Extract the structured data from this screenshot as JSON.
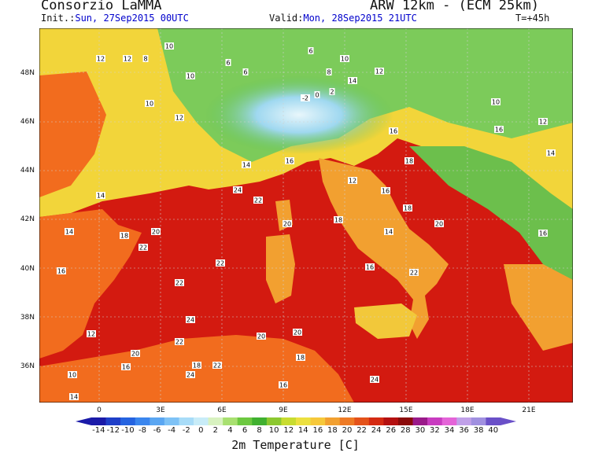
{
  "header": {
    "org": "Consorzio LaMMA",
    "model": "ARW 12km - (ECM 25km)",
    "init_label": "Init.:",
    "init_value": "Sun, 27Sep2015 00UTC",
    "valid_label": "Valid:",
    "valid_value": "Mon, 28Sep2015 21UTC",
    "lead": "T=+45h"
  },
  "map": {
    "lon_labels": [
      "0",
      "3E",
      "6E",
      "9E",
      "12E",
      "15E",
      "18E",
      "21E"
    ],
    "lat_labels": [
      "48N",
      "46N",
      "44N",
      "42N",
      "40N",
      "38N",
      "36N"
    ],
    "colors": {
      "sea": "#d31a10",
      "land_warm": "#f26c1e",
      "land_mid": "#f3d63a",
      "land_cool": "#7ccb5a",
      "alps": "#9fd8f0"
    }
  },
  "values": [
    "10",
    "12",
    "12",
    "8",
    "10",
    "6",
    "6",
    "6",
    "8",
    "10",
    "14",
    "-2",
    "0",
    "2",
    "12",
    "16",
    "10",
    "12",
    "14",
    "16",
    "18",
    "20",
    "22",
    "24",
    "14",
    "18",
    "22",
    "20",
    "14",
    "16",
    "22",
    "24",
    "22",
    "20",
    "18",
    "16",
    "14",
    "12",
    "10",
    "12",
    "16",
    "18",
    "20",
    "22",
    "24",
    "24",
    "20",
    "18",
    "16",
    "22",
    "20",
    "12",
    "10",
    "14",
    "16",
    "18",
    "22",
    "16",
    "14",
    "16"
  ],
  "colorbar": {
    "labels": [
      "-14",
      "-12",
      "-10",
      "-8",
      "-6",
      "-4",
      "-2",
      "0",
      "2",
      "4",
      "6",
      "8",
      "10",
      "12",
      "14",
      "16",
      "18",
      "20",
      "22",
      "24",
      "26",
      "28",
      "30",
      "32",
      "34",
      "36",
      "38",
      "40"
    ],
    "colors": [
      "#1a1aa8",
      "#1f3fc8",
      "#2563e0",
      "#3a86ee",
      "#5aa6f2",
      "#7ec2f6",
      "#a8dcf8",
      "#c8ecf8",
      "#d8f2c0",
      "#a8e070",
      "#6cc840",
      "#40b030",
      "#8cc830",
      "#c8dc30",
      "#ece040",
      "#f6c83a",
      "#f2a030",
      "#ee7a24",
      "#e4521a",
      "#d42a12",
      "#b41010",
      "#8a0a0a",
      "#9a1a8a",
      "#c83cc0",
      "#e464d8",
      "#c0a0e8",
      "#a090e0",
      "#6a50c8"
    ],
    "title": "2m Temperature [C]"
  }
}
